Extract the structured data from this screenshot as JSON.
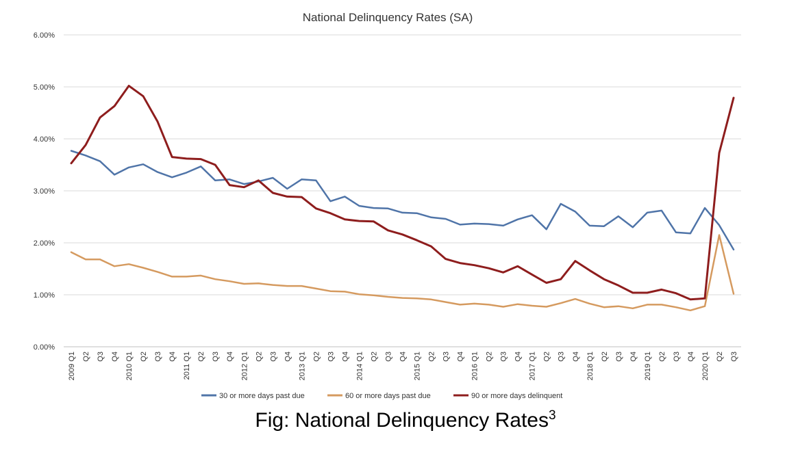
{
  "chart_data": {
    "type": "line",
    "title": "National Delinquency Rates (SA)",
    "xlabel": "",
    "ylabel": "",
    "ylim": [
      0,
      6
    ],
    "yticks": [
      "0.00%",
      "1.00%",
      "2.00%",
      "3.00%",
      "4.00%",
      "5.00%",
      "6.00%"
    ],
    "grid": true,
    "legend_position": "bottom",
    "categories": [
      "2009 Q1",
      "Q2",
      "Q3",
      "Q4",
      "2010 Q1",
      "Q2",
      "Q3",
      "Q4",
      "2011 Q1",
      "Q2",
      "Q3",
      "Q4",
      "2012 Q1",
      "Q2",
      "Q3",
      "Q4",
      "2013 Q1",
      "Q2",
      "Q3",
      "Q4",
      "2014 Q1",
      "Q2",
      "Q3",
      "Q4",
      "2015 Q1",
      "Q2",
      "Q3",
      "Q4",
      "2016 Q1",
      "Q2",
      "Q3",
      "Q4",
      "2017 Q1",
      "Q2",
      "Q3",
      "Q4",
      "2018 Q1",
      "Q2",
      "Q3",
      "Q4",
      "2019 Q1",
      "Q2",
      "Q3",
      "Q4",
      "2020 Q1",
      "Q2",
      "Q3"
    ],
    "series": [
      {
        "name": "30 or more days past due",
        "color": "#4F74A8",
        "values": [
          3.77,
          3.68,
          3.57,
          3.31,
          3.45,
          3.51,
          3.36,
          3.26,
          3.35,
          3.47,
          3.2,
          3.22,
          3.13,
          3.18,
          3.25,
          3.04,
          3.22,
          3.2,
          2.8,
          2.89,
          2.71,
          2.67,
          2.66,
          2.58,
          2.57,
          2.49,
          2.46,
          2.35,
          2.37,
          2.36,
          2.33,
          2.45,
          2.53,
          2.26,
          2.75,
          2.6,
          2.33,
          2.32,
          2.51,
          2.3,
          2.58,
          2.62,
          2.2,
          2.18,
          2.67,
          2.34,
          1.87
        ]
      },
      {
        "name": "60 or more days past due",
        "color": "#D59A5F",
        "values": [
          1.82,
          1.68,
          1.68,
          1.55,
          1.59,
          1.52,
          1.44,
          1.35,
          1.35,
          1.37,
          1.3,
          1.26,
          1.21,
          1.22,
          1.19,
          1.17,
          1.17,
          1.12,
          1.07,
          1.06,
          1.01,
          0.99,
          0.96,
          0.94,
          0.93,
          0.91,
          0.86,
          0.81,
          0.83,
          0.81,
          0.77,
          0.82,
          0.79,
          0.77,
          0.84,
          0.92,
          0.83,
          0.76,
          0.78,
          0.74,
          0.81,
          0.81,
          0.76,
          0.7,
          0.78,
          2.15,
          1.02
        ]
      },
      {
        "name": "90 or more days delinquent",
        "color": "#8E1D1D",
        "values": [
          3.53,
          3.88,
          4.41,
          4.63,
          5.02,
          4.82,
          4.33,
          3.65,
          3.62,
          3.61,
          3.5,
          3.11,
          3.07,
          3.2,
          2.96,
          2.89,
          2.88,
          2.66,
          2.57,
          2.45,
          2.42,
          2.41,
          2.24,
          2.16,
          2.05,
          1.93,
          1.69,
          1.61,
          1.57,
          1.51,
          1.43,
          1.55,
          1.39,
          1.23,
          1.3,
          1.65,
          1.47,
          1.3,
          1.18,
          1.04,
          1.04,
          1.1,
          1.03,
          0.91,
          0.93,
          3.73,
          4.79
        ]
      }
    ]
  },
  "caption": {
    "text": "Fig: National Delinquency Rates",
    "superscript": "3"
  }
}
